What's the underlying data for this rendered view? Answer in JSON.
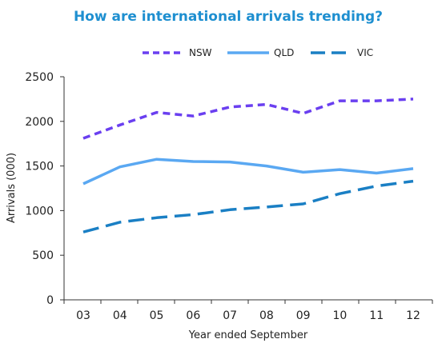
{
  "chart_data": {
    "type": "line",
    "title": "How are international arrivals trending?",
    "xlabel": "Year ended September",
    "ylabel": "Arrivals (000)",
    "categories": [
      "03",
      "04",
      "05",
      "06",
      "07",
      "08",
      "09",
      "10",
      "11",
      "12"
    ],
    "ylim": [
      0,
      2500
    ],
    "yticks": [
      "0",
      "500",
      "1000",
      "1500",
      "2000",
      "2500"
    ],
    "grid": false,
    "legend_position": "top",
    "series": [
      {
        "name": "NSW",
        "color": "#6a3ff0",
        "style": "short-dash",
        "values": [
          1810,
          1960,
          2100,
          2060,
          2160,
          2190,
          2090,
          2230,
          2230,
          2250
        ]
      },
      {
        "name": "QLD",
        "color": "#5aa8f2",
        "style": "solid",
        "values": [
          1300,
          1490,
          1575,
          1550,
          1545,
          1500,
          1430,
          1460,
          1420,
          1470
        ]
      },
      {
        "name": "VIC",
        "color": "#1a7fc4",
        "style": "long-dash",
        "values": [
          760,
          870,
          920,
          955,
          1010,
          1040,
          1075,
          1190,
          1275,
          1330
        ]
      }
    ]
  }
}
